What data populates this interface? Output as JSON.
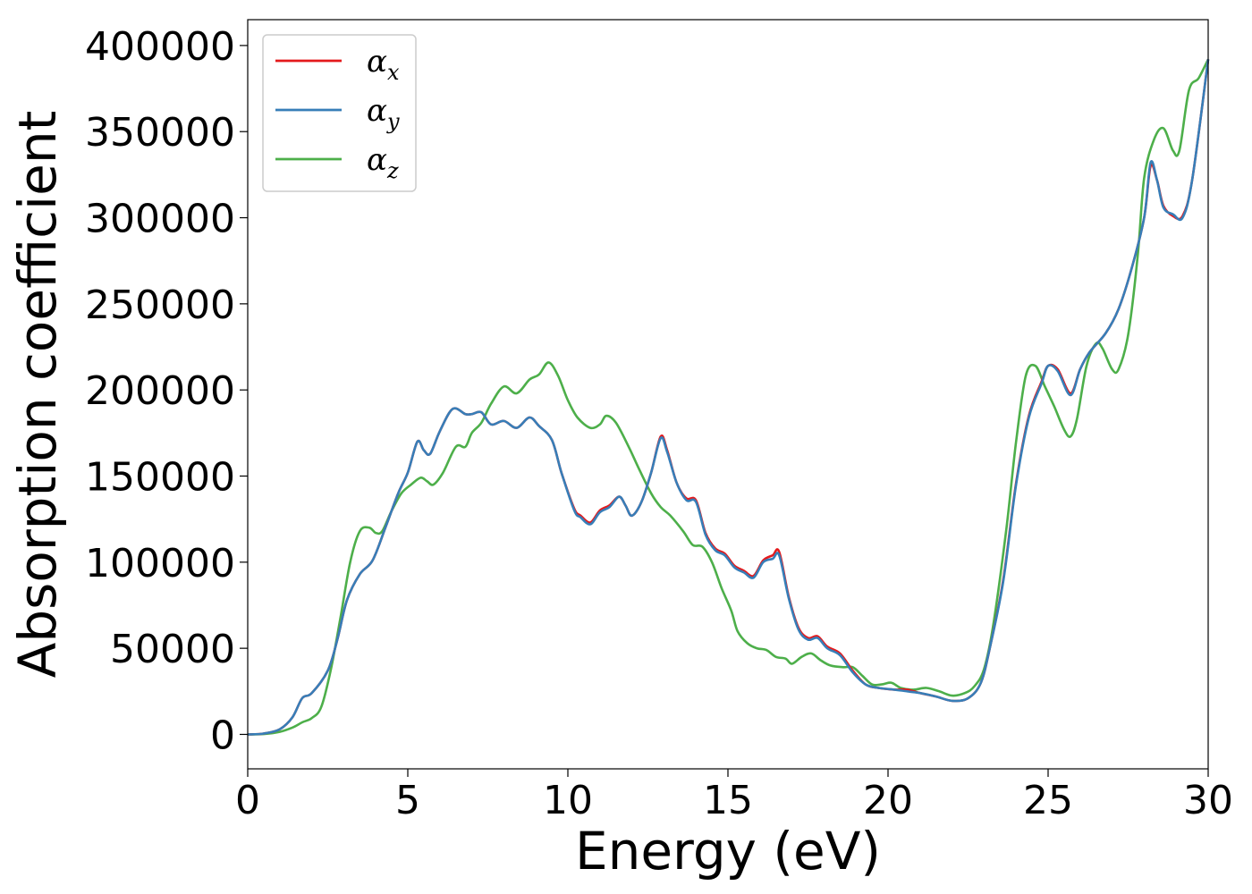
{
  "chart_data": {
    "type": "line",
    "title": "",
    "xlabel": "Energy (eV)",
    "ylabel": "Absorption coefficient",
    "xlim": [
      0,
      30
    ],
    "ylim": [
      -20000,
      415000
    ],
    "xticks": [
      0,
      5,
      10,
      15,
      20,
      25,
      30
    ],
    "xtick_labels": [
      "0",
      "5",
      "10",
      "15",
      "20",
      "25",
      "30"
    ],
    "yticks": [
      0,
      50000,
      100000,
      150000,
      200000,
      250000,
      300000,
      350000,
      400000
    ],
    "ytick_labels": [
      "0",
      "50000",
      "100000",
      "150000",
      "200000",
      "250000",
      "300000",
      "350000",
      "400000"
    ],
    "grid": false,
    "legend_position": "top-left",
    "series": [
      {
        "name": "α_x",
        "legend_symbol": "α",
        "legend_subscript": "x",
        "color": "#e41a1c",
        "points": [
          [
            0,
            0
          ],
          [
            0.5,
            500
          ],
          [
            1.0,
            3000
          ],
          [
            1.4,
            10000
          ],
          [
            1.7,
            21000
          ],
          [
            2.0,
            24000
          ],
          [
            2.5,
            37000
          ],
          [
            2.8,
            55000
          ],
          [
            3.1,
            78000
          ],
          [
            3.5,
            93000
          ],
          [
            3.9,
            101000
          ],
          [
            4.3,
            120000
          ],
          [
            4.7,
            140000
          ],
          [
            5.0,
            152000
          ],
          [
            5.3,
            170000
          ],
          [
            5.5,
            165000
          ],
          [
            5.7,
            163000
          ],
          [
            6.0,
            176000
          ],
          [
            6.4,
            189000
          ],
          [
            6.8,
            186000
          ],
          [
            7.0,
            186000
          ],
          [
            7.3,
            187000
          ],
          [
            7.6,
            180000
          ],
          [
            8.0,
            182000
          ],
          [
            8.4,
            178000
          ],
          [
            8.8,
            184000
          ],
          [
            9.1,
            179000
          ],
          [
            9.5,
            171000
          ],
          [
            9.8,
            152000
          ],
          [
            10.2,
            131000
          ],
          [
            10.4,
            127000
          ],
          [
            10.7,
            123000
          ],
          [
            11.0,
            130000
          ],
          [
            11.3,
            133000
          ],
          [
            11.6,
            138000
          ],
          [
            11.8,
            133000
          ],
          [
            12.0,
            127000
          ],
          [
            12.3,
            135000
          ],
          [
            12.6,
            152000
          ],
          [
            12.9,
            173000
          ],
          [
            13.1,
            165000
          ],
          [
            13.4,
            146000
          ],
          [
            13.7,
            137000
          ],
          [
            14.0,
            136000
          ],
          [
            14.3,
            117000
          ],
          [
            14.6,
            108000
          ],
          [
            14.9,
            105000
          ],
          [
            15.2,
            98000
          ],
          [
            15.5,
            95000
          ],
          [
            15.8,
            92000
          ],
          [
            16.1,
            101000
          ],
          [
            16.4,
            104000
          ],
          [
            16.6,
            106000
          ],
          [
            16.9,
            80000
          ],
          [
            17.2,
            62000
          ],
          [
            17.5,
            56000
          ],
          [
            17.8,
            57000
          ],
          [
            18.1,
            51000
          ],
          [
            18.5,
            47000
          ],
          [
            18.9,
            37000
          ],
          [
            19.3,
            29000
          ],
          [
            19.7,
            27000
          ],
          [
            20.2,
            26000
          ],
          [
            20.6,
            26000
          ],
          [
            21.0,
            24000
          ],
          [
            21.5,
            22000
          ],
          [
            22.0,
            19500
          ],
          [
            22.5,
            21000
          ],
          [
            22.9,
            30000
          ],
          [
            23.2,
            52000
          ],
          [
            23.6,
            90000
          ],
          [
            24.0,
            146000
          ],
          [
            24.4,
            185000
          ],
          [
            24.8,
            205000
          ],
          [
            25.0,
            214000
          ],
          [
            25.3,
            212000
          ],
          [
            25.7,
            198000
          ],
          [
            26.0,
            212000
          ],
          [
            26.3,
            222000
          ],
          [
            26.8,
            233000
          ],
          [
            27.2,
            247000
          ],
          [
            27.6,
            270000
          ],
          [
            28.0,
            300000
          ],
          [
            28.2,
            330000
          ],
          [
            28.4,
            322000
          ],
          [
            28.6,
            307000
          ],
          [
            28.9,
            301000
          ],
          [
            29.2,
            301000
          ],
          [
            29.5,
            322000
          ],
          [
            30.0,
            392000
          ]
        ]
      },
      {
        "name": "α_y",
        "legend_symbol": "α",
        "legend_subscript": "y",
        "color": "#377eb8",
        "points": [
          [
            0,
            0
          ],
          [
            0.5,
            500
          ],
          [
            1.0,
            3000
          ],
          [
            1.4,
            10000
          ],
          [
            1.7,
            21000
          ],
          [
            2.0,
            24000
          ],
          [
            2.5,
            37000
          ],
          [
            2.8,
            55000
          ],
          [
            3.1,
            78000
          ],
          [
            3.5,
            93000
          ],
          [
            3.9,
            101000
          ],
          [
            4.3,
            120000
          ],
          [
            4.7,
            140000
          ],
          [
            5.0,
            152000
          ],
          [
            5.3,
            170000
          ],
          [
            5.5,
            165000
          ],
          [
            5.7,
            163000
          ],
          [
            6.0,
            176000
          ],
          [
            6.4,
            189000
          ],
          [
            6.8,
            186000
          ],
          [
            7.0,
            186000
          ],
          [
            7.3,
            187000
          ],
          [
            7.6,
            180000
          ],
          [
            8.0,
            182000
          ],
          [
            8.4,
            178000
          ],
          [
            8.8,
            184000
          ],
          [
            9.1,
            179000
          ],
          [
            9.5,
            171000
          ],
          [
            9.8,
            152000
          ],
          [
            10.2,
            130000
          ],
          [
            10.4,
            126000
          ],
          [
            10.7,
            122000
          ],
          [
            11.0,
            129000
          ],
          [
            11.3,
            132000
          ],
          [
            11.6,
            138000
          ],
          [
            11.8,
            133000
          ],
          [
            12.0,
            127000
          ],
          [
            12.3,
            135000
          ],
          [
            12.6,
            152000
          ],
          [
            12.9,
            172000
          ],
          [
            13.1,
            164000
          ],
          [
            13.4,
            146000
          ],
          [
            13.7,
            136000
          ],
          [
            14.0,
            135000
          ],
          [
            14.3,
            116000
          ],
          [
            14.6,
            107000
          ],
          [
            14.9,
            104000
          ],
          [
            15.2,
            97000
          ],
          [
            15.5,
            94000
          ],
          [
            15.8,
            91000
          ],
          [
            16.1,
            100000
          ],
          [
            16.4,
            102000
          ],
          [
            16.6,
            104000
          ],
          [
            16.9,
            79000
          ],
          [
            17.2,
            61000
          ],
          [
            17.5,
            55000
          ],
          [
            17.8,
            56000
          ],
          [
            18.1,
            50000
          ],
          [
            18.5,
            46000
          ],
          [
            18.9,
            36000
          ],
          [
            19.3,
            29000
          ],
          [
            19.7,
            27000
          ],
          [
            20.2,
            26000
          ],
          [
            20.6,
            25000
          ],
          [
            21.0,
            24000
          ],
          [
            21.5,
            22000
          ],
          [
            22.0,
            19500
          ],
          [
            22.5,
            21000
          ],
          [
            22.9,
            30000
          ],
          [
            23.2,
            52000
          ],
          [
            23.6,
            89000
          ],
          [
            24.0,
            145000
          ],
          [
            24.4,
            184000
          ],
          [
            24.8,
            204000
          ],
          [
            25.0,
            214000
          ],
          [
            25.3,
            211000
          ],
          [
            25.7,
            197000
          ],
          [
            26.0,
            212000
          ],
          [
            26.3,
            222000
          ],
          [
            26.8,
            233000
          ],
          [
            27.2,
            247000
          ],
          [
            27.6,
            270000
          ],
          [
            28.0,
            300000
          ],
          [
            28.2,
            332000
          ],
          [
            28.4,
            322000
          ],
          [
            28.6,
            306000
          ],
          [
            28.9,
            302000
          ],
          [
            29.2,
            300000
          ],
          [
            29.5,
            322000
          ],
          [
            30.0,
            392000
          ]
        ]
      },
      {
        "name": "α_z",
        "legend_symbol": "α",
        "legend_subscript": "z",
        "color": "#4daf4a",
        "points": [
          [
            0,
            0
          ],
          [
            0.5,
            200
          ],
          [
            1.0,
            1500
          ],
          [
            1.4,
            4000
          ],
          [
            1.7,
            7000
          ],
          [
            2.0,
            9500
          ],
          [
            2.3,
            16000
          ],
          [
            2.6,
            38000
          ],
          [
            2.9,
            68000
          ],
          [
            3.2,
            100000
          ],
          [
            3.5,
            118000
          ],
          [
            3.8,
            120000
          ],
          [
            4.0,
            117000
          ],
          [
            4.2,
            118000
          ],
          [
            4.5,
            130000
          ],
          [
            4.8,
            140000
          ],
          [
            5.1,
            145000
          ],
          [
            5.4,
            149000
          ],
          [
            5.6,
            147000
          ],
          [
            5.8,
            145000
          ],
          [
            6.1,
            152000
          ],
          [
            6.5,
            167000
          ],
          [
            6.8,
            167000
          ],
          [
            7.0,
            175000
          ],
          [
            7.3,
            181000
          ],
          [
            7.6,
            192000
          ],
          [
            8.0,
            202000
          ],
          [
            8.4,
            198000
          ],
          [
            8.8,
            206000
          ],
          [
            9.1,
            209000
          ],
          [
            9.4,
            216000
          ],
          [
            9.7,
            208000
          ],
          [
            10.0,
            194000
          ],
          [
            10.3,
            184000
          ],
          [
            10.7,
            178000
          ],
          [
            11.0,
            180000
          ],
          [
            11.2,
            185000
          ],
          [
            11.5,
            181000
          ],
          [
            11.9,
            167000
          ],
          [
            12.2,
            155000
          ],
          [
            12.6,
            140000
          ],
          [
            12.9,
            132000
          ],
          [
            13.2,
            127000
          ],
          [
            13.6,
            118000
          ],
          [
            13.9,
            110000
          ],
          [
            14.2,
            109000
          ],
          [
            14.5,
            100000
          ],
          [
            14.8,
            85000
          ],
          [
            15.1,
            72000
          ],
          [
            15.3,
            60000
          ],
          [
            15.6,
            53000
          ],
          [
            15.9,
            50000
          ],
          [
            16.2,
            49000
          ],
          [
            16.5,
            45000
          ],
          [
            16.8,
            44000
          ],
          [
            17.0,
            41000
          ],
          [
            17.3,
            45000
          ],
          [
            17.6,
            47000
          ],
          [
            17.9,
            43000
          ],
          [
            18.2,
            40000
          ],
          [
            18.6,
            39000
          ],
          [
            18.9,
            39000
          ],
          [
            19.2,
            34000
          ],
          [
            19.5,
            29000
          ],
          [
            19.8,
            29000
          ],
          [
            20.1,
            30000
          ],
          [
            20.4,
            27000
          ],
          [
            20.8,
            26000
          ],
          [
            21.2,
            27000
          ],
          [
            21.6,
            25000
          ],
          [
            22.0,
            22500
          ],
          [
            22.4,
            24000
          ],
          [
            22.7,
            28000
          ],
          [
            23.0,
            38000
          ],
          [
            23.3,
            65000
          ],
          [
            23.7,
            120000
          ],
          [
            24.0,
            170000
          ],
          [
            24.3,
            208000
          ],
          [
            24.6,
            214000
          ],
          [
            24.9,
            202000
          ],
          [
            25.2,
            190000
          ],
          [
            25.5,
            177000
          ],
          [
            25.7,
            173000
          ],
          [
            25.9,
            183000
          ],
          [
            26.2,
            214000
          ],
          [
            26.5,
            227000
          ],
          [
            26.7,
            224000
          ],
          [
            27.0,
            212000
          ],
          [
            27.2,
            212000
          ],
          [
            27.5,
            232000
          ],
          [
            27.8,
            278000
          ],
          [
            28.0,
            323000
          ],
          [
            28.3,
            345000
          ],
          [
            28.6,
            352000
          ],
          [
            28.9,
            339000
          ],
          [
            29.1,
            339000
          ],
          [
            29.4,
            374000
          ],
          [
            29.7,
            381000
          ],
          [
            30.0,
            392000
          ]
        ]
      }
    ]
  }
}
